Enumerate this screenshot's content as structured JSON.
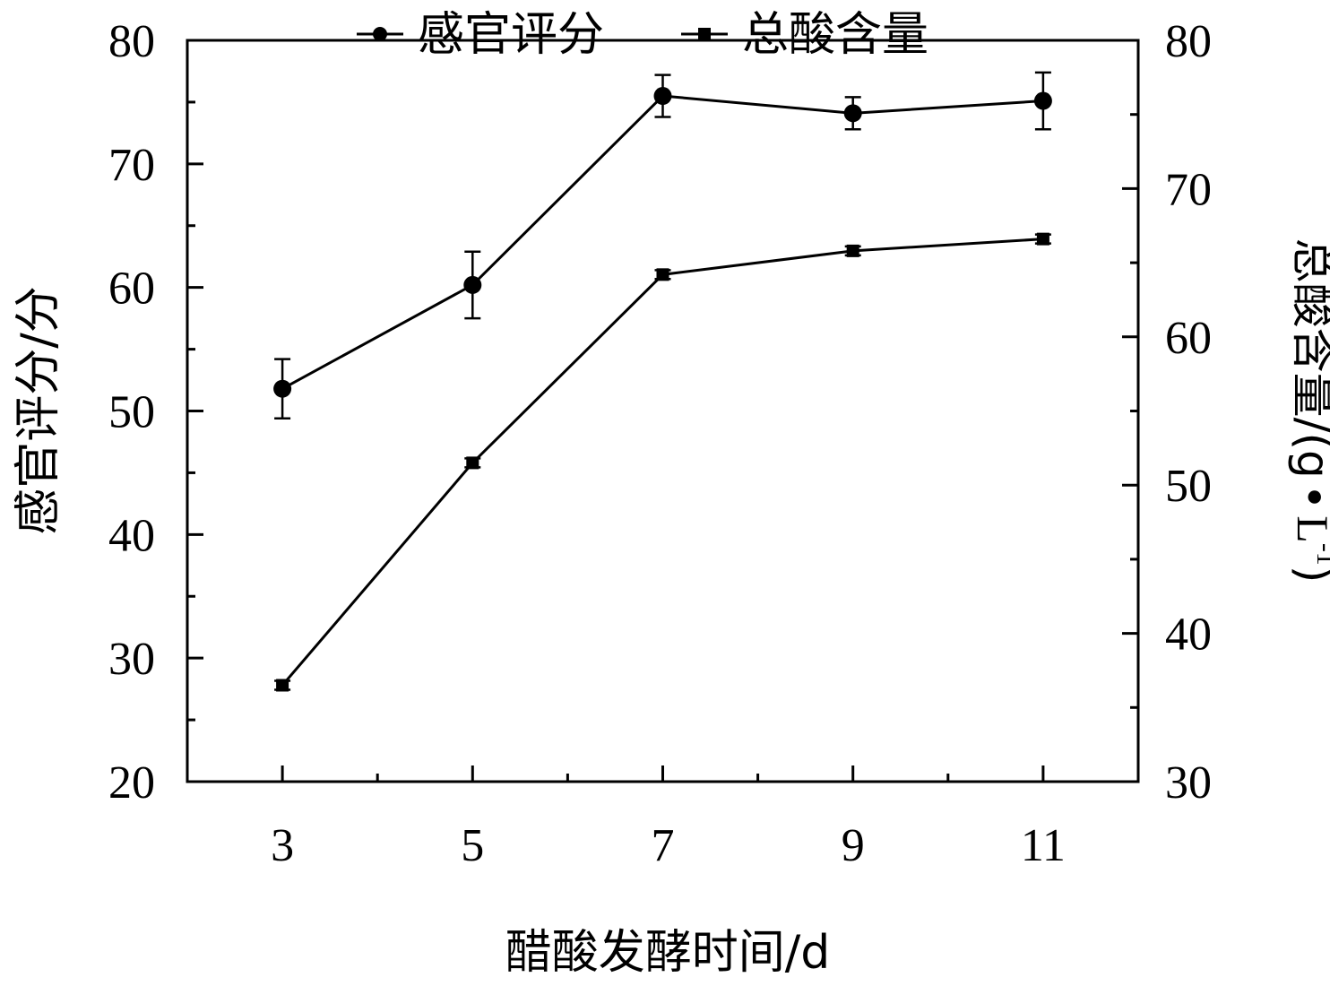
{
  "chart_data": {
    "type": "line",
    "title": "",
    "x": [
      3,
      5,
      7,
      9,
      11
    ],
    "xlabel": "醋酸发酵时间/d",
    "xlim": [
      2,
      12
    ],
    "x_major_ticks": [
      3,
      5,
      7,
      9,
      11
    ],
    "x_minor_ticks": [
      4,
      6,
      8,
      10
    ],
    "y_left": {
      "label": "感官评分/分",
      "lim": [
        20,
        80
      ],
      "ticks": [
        20,
        30,
        40,
        50,
        60,
        70,
        80
      ]
    },
    "y_right": {
      "label_main": "总酸含量/(g",
      "label_bullet": "•",
      "label_unit": "L",
      "label_sup": "-1",
      "label_close": ")",
      "lim": [
        30,
        80
      ],
      "ticks": [
        30,
        40,
        50,
        60,
        70,
        80
      ]
    },
    "grid": false,
    "legend_placement": "top-center",
    "series": [
      {
        "name": "感官评分",
        "axis": "left",
        "marker": "circle",
        "values": [
          51.8,
          60.2,
          75.5,
          74.1,
          75.1
        ],
        "error": [
          2.4,
          2.7,
          1.7,
          1.3,
          2.3
        ]
      },
      {
        "name": "总酸含量",
        "axis": "right",
        "marker": "square",
        "values": [
          36.5,
          51.5,
          64.2,
          65.8,
          66.6
        ],
        "error": [
          0.3,
          0.3,
          0.3,
          0.3,
          0.3
        ]
      }
    ]
  }
}
